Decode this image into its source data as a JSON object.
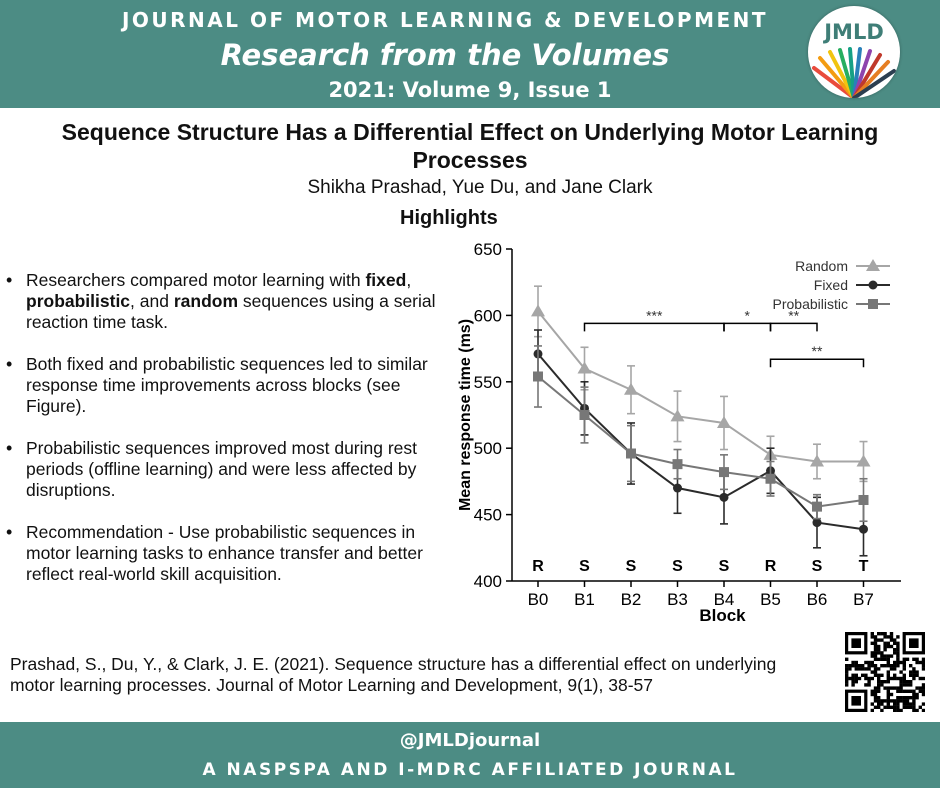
{
  "header": {
    "journal": "JOURNAL OF MOTOR LEARNING & DEVELOPMENT",
    "series": "Research from the Volumes",
    "volume": "2021: Volume 9, Issue 1",
    "logo_text": "JMLD",
    "color": "#4c8c84"
  },
  "article": {
    "title": "Sequence Structure Has a Differential Effect on Underlying Motor Learning Processes",
    "authors": "Shikha Prashad, Yue Du, and Jane Clark",
    "highlights_heading": "Highlights"
  },
  "bullets": [
    {
      "pre": "Researchers compared motor learning with ",
      "b1": "fixed",
      "m1": ", ",
      "b2": "probabilistic",
      "m2": ", and ",
      "b3": "random",
      "post": " sequences using a serial reaction time task."
    },
    {
      "text": "Both fixed and probabilistic sequences led to similar response time improvements across blocks (see Figure)."
    },
    {
      "text": "Probabilistic sequences improved most during rest periods (offline learning) and were less affected by disruptions."
    },
    {
      "text": "Recommendation - Use probabilistic sequences in motor learning tasks to enhance transfer and better reflect real-world skill acquisition."
    }
  ],
  "chart_data": {
    "type": "line",
    "xlabel": "Block",
    "ylabel": "Mean response time (ms)",
    "categories": [
      "B0",
      "B1",
      "B2",
      "B3",
      "B4",
      "B5",
      "B6",
      "B7"
    ],
    "block_types": [
      "R",
      "S",
      "S",
      "S",
      "S",
      "R",
      "S",
      "T"
    ],
    "ylim": [
      400,
      650
    ],
    "yticks": [
      400,
      450,
      500,
      550,
      600,
      650
    ],
    "legend_position": "top-right",
    "series": [
      {
        "name": "Random",
        "marker": "triangle",
        "color": "#a6a6a6",
        "values": [
          603,
          560,
          544,
          524,
          519,
          495,
          490,
          490
        ],
        "error": [
          19,
          16,
          18,
          19,
          20,
          14,
          13,
          15
        ]
      },
      {
        "name": "Fixed",
        "marker": "circle",
        "color": "#2b2b2b",
        "values": [
          571,
          530,
          496,
          470,
          463,
          483,
          444,
          439
        ],
        "error": [
          18,
          20,
          23,
          19,
          20,
          17,
          19,
          20
        ]
      },
      {
        "name": "Probabilistic",
        "marker": "square",
        "color": "#777777",
        "values": [
          554,
          525,
          496,
          488,
          482,
          477,
          456,
          461
        ],
        "error": [
          23,
          21,
          21,
          11,
          13,
          13,
          9,
          16
        ]
      }
    ],
    "significance": [
      {
        "from": "B1",
        "to": "B4",
        "label": "***",
        "level": 594
      },
      {
        "from": "B4",
        "to": "B5",
        "label": "*",
        "level": 594
      },
      {
        "from": "B5",
        "to": "B6",
        "label": "**",
        "level": 594
      },
      {
        "from": "B5",
        "to": "B7",
        "label": "**",
        "level": 567
      }
    ]
  },
  "citation": "Prashad, S., Du, Y., & Clark, J. E. (2021). Sequence structure has a differential effect on underlying motor learning processes. Journal of Motor Learning and Development, 9(1), 38-57",
  "footer": {
    "handle": "@JMLDjournal",
    "affiliation": "A NASPSPA AND I-MDRC AFFILIATED JOURNAL"
  }
}
